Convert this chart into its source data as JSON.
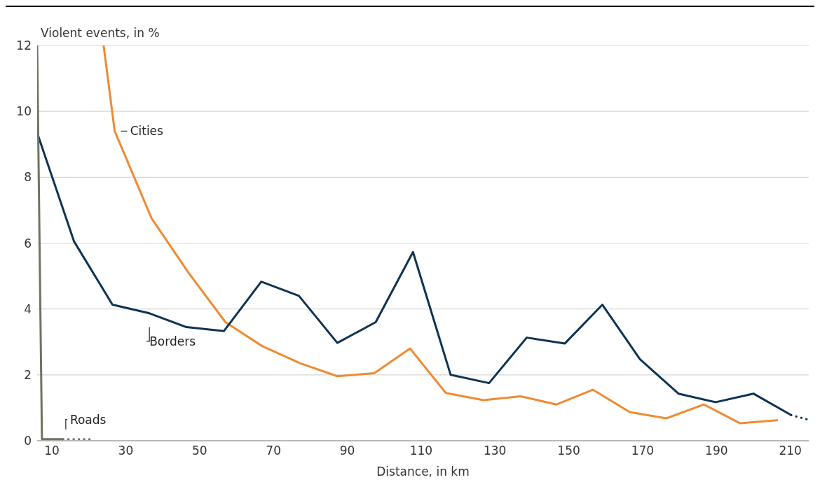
{
  "chart_data": {
    "type": "line",
    "ylabel": "Violent events, in %",
    "xlabel": "Distance, in km",
    "xlim": [
      6,
      215
    ],
    "xticks": [
      10,
      30,
      50,
      70,
      90,
      110,
      130,
      150,
      170,
      190,
      210
    ],
    "ylim": [
      0,
      12
    ],
    "yticks": [
      0,
      2,
      4,
      6,
      8,
      10,
      12
    ],
    "grid": "y",
    "legend": false,
    "marker": "none",
    "line_style": "solid",
    "series": [
      {
        "name": "Cities",
        "color": "#f08a32",
        "x": [
          24,
          27,
          37,
          47,
          57,
          67,
          77.3,
          87.3,
          97.3,
          107,
          116.7,
          126.9,
          136.9,
          146.7,
          156.5,
          166.5,
          176.4,
          186.6,
          196.4,
          206.4
        ],
        "values": [
          12,
          9.4,
          6.75,
          5.1,
          3.6,
          2.87,
          2.35,
          1.96,
          2.05,
          2.8,
          1.45,
          1.23,
          1.35,
          1.1,
          1.55,
          0.87,
          0.68,
          1.1,
          0.53,
          0.62
        ]
      },
      {
        "name": "Borders",
        "color": "#0f3352",
        "x": [
          6,
          16,
          26.4,
          36.4,
          46.4,
          56.6,
          66.7,
          76.9,
          87.3,
          97.7,
          107.8,
          118,
          128.4,
          138.6,
          148.9,
          159.1,
          169.3,
          179.7,
          189.8,
          200,
          210.2
        ],
        "values": [
          9.35,
          6.05,
          4.13,
          3.87,
          3.45,
          3.33,
          4.83,
          4.4,
          2.97,
          3.6,
          5.73,
          2.0,
          1.75,
          3.13,
          2.95,
          4.13,
          2.47,
          1.43,
          1.17,
          1.43,
          0.78
        ]
      },
      {
        "color": "#0f3352",
        "line_style": "dotted",
        "x": [
          210.2,
          214.5
        ],
        "values": [
          0.78,
          0.65
        ]
      },
      {
        "name": "Roads",
        "color": "#6b7560",
        "x": [
          6,
          7.3,
          13
        ],
        "values": [
          12,
          0.05,
          0.05
        ]
      },
      {
        "color": "#6b7560",
        "line_style": "dotted",
        "x": [
          13,
          21
        ],
        "values": [
          0.05,
          0.05
        ]
      }
    ]
  }
}
